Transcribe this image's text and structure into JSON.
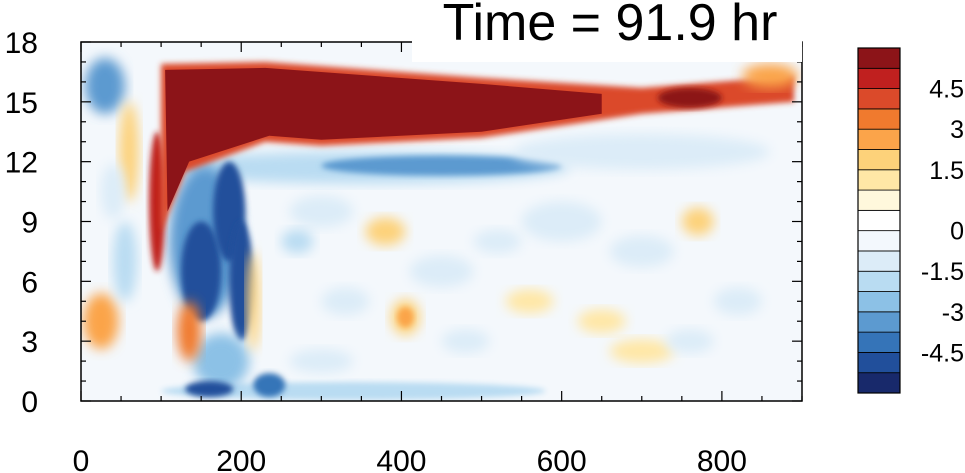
{
  "chart_data": {
    "type": "heatmap",
    "title": "Time = 91.9 hr",
    "xlabel": "",
    "ylabel": "",
    "xlim": [
      0,
      900
    ],
    "ylim": [
      0,
      18
    ],
    "x_ticks": [
      0,
      200,
      400,
      600,
      800
    ],
    "y_ticks": [
      0,
      3,
      6,
      9,
      12,
      15,
      18
    ],
    "colorbar": {
      "levels": [
        -5.25,
        -4.5,
        -3.75,
        -3,
        -2.25,
        -1.5,
        -0.75,
        -0.25,
        0.25,
        0.75,
        1.5,
        2.25,
        3,
        3.75,
        4.5,
        5.25
      ],
      "labels": [
        "4.5",
        "3",
        "1.5",
        "0",
        "-1.5",
        "-3",
        "-4.5"
      ],
      "colors": [
        "#18296b",
        "#214f9b",
        "#3574b8",
        "#5c9ad0",
        "#8cc1e6",
        "#b9dcf2",
        "#dcecf8",
        "#f3f8fd",
        "#ffffff",
        "#fff8dc",
        "#ffe7a6",
        "#fdd27a",
        "#fba44a",
        "#f07a2e",
        "#db4a2a",
        "#c0201f",
        "#8c1418"
      ]
    },
    "features": [
      {
        "name": "upper positive band",
        "x_range": [
          100,
          890
        ],
        "z_range": [
          13,
          17
        ],
        "value": 5.5
      },
      {
        "name": "negative band below",
        "x_range": [
          100,
          600
        ],
        "z_range": [
          10.5,
          12.5
        ],
        "value": -2.5
      },
      {
        "name": "convective negative core",
        "x_range": [
          100,
          220
        ],
        "z_range": [
          0.5,
          12
        ],
        "value": -5
      },
      {
        "name": "positive cell",
        "x": 405,
        "z": 4.2,
        "value": 2.5
      }
    ]
  }
}
